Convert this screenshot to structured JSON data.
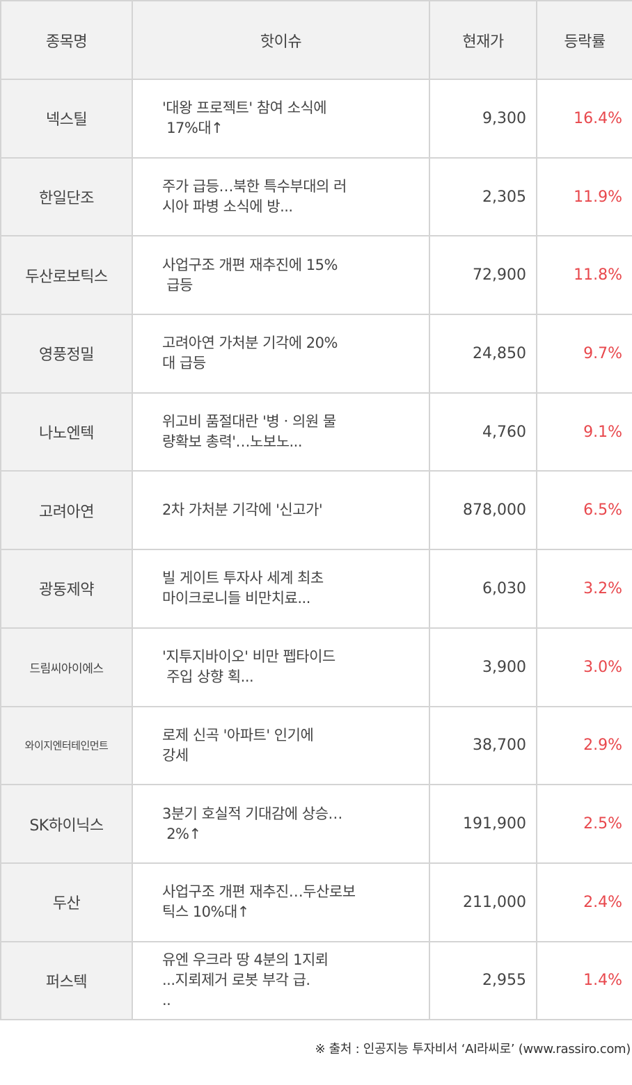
{
  "header": {
    "name": "종목명",
    "issue": "핫이슈",
    "price": "현재가",
    "rate": "등락률"
  },
  "colors": {
    "header_bg": "#f2f2f2",
    "name_bg": "#f2f2f2",
    "grid": "#d4d4d4",
    "text": "#444444",
    "rate_up": "#e8474c"
  },
  "rows": [
    {
      "name": "넥스틸",
      "issue": "'대왕 프로젝트' 참여 소식에\n 17%대↑",
      "price": "9,300",
      "rate": "16.4%"
    },
    {
      "name": "한일단조",
      "issue": "주가 급등…북한 특수부대의 러\n시아 파병 소식에 방...",
      "price": "2,305",
      "rate": "11.9%"
    },
    {
      "name": "두산로보틱스",
      "issue": "사업구조 개편 재추진에 15%\n 급등",
      "price": "72,900",
      "rate": "11.8%"
    },
    {
      "name": "영풍정밀",
      "issue": "고려아연 가처분 기각에 20%\n대 급등",
      "price": "24,850",
      "rate": "9.7%"
    },
    {
      "name": "나노엔텍",
      "issue": "위고비 품절대란 '병ㆍ의원 물\n량확보 총력'…노보노...",
      "price": "4,760",
      "rate": "9.1%"
    },
    {
      "name": "고려아연",
      "issue": "2차 가처분 기각에 '신고가'",
      "price": "878,000",
      "rate": "6.5%"
    },
    {
      "name": "광동제약",
      "issue": "빌 게이트 투자사 세계 최초\n마이크로니들 비만치료...",
      "price": "6,030",
      "rate": "3.2%"
    },
    {
      "name": "드림씨아이에스",
      "issue": "'지투지바이오' 비만 펩타이드\n 주입 상향 획...",
      "price": "3,900",
      "rate": "3.0%"
    },
    {
      "name": "와이지엔터테인먼트",
      "issue": "로제 신곡 '아파트' 인기에\n강세",
      "price": "38,700",
      "rate": "2.9%"
    },
    {
      "name": "SK하이닉스",
      "issue": "3분기 호실적 기대감에 상승…\n 2%↑",
      "price": "191,900",
      "rate": "2.5%"
    },
    {
      "name": "두산",
      "issue": "사업구조 개편 재추진…두산로보\n틱스 10%대↑",
      "price": "211,000",
      "rate": "2.4%"
    },
    {
      "name": "퍼스텍",
      "issue": "유엔 우크라 땅 4분의 1지뢰\n...지뢰제거 로봇 부각 급.\n..",
      "price": "2,955",
      "rate": "1.4%"
    }
  ],
  "footer": {
    "source": "※ 출처 : 인공지능 투자비서 ‘AI라씨로’ (www.rassiro.com)"
  }
}
